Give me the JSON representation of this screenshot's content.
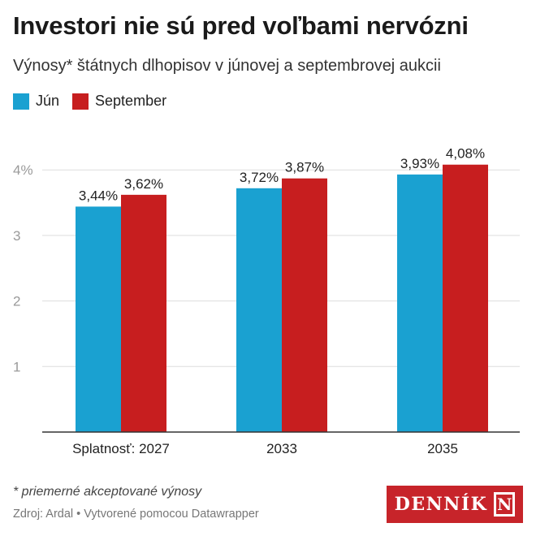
{
  "header": {
    "title": "Investori nie sú pred voľbami nervózni",
    "subtitle": "Výnosy* štátnych dlhopisov v júnovej a septembrovej aukcii"
  },
  "legend": [
    {
      "label": "Jún",
      "color": "#1aa1d1"
    },
    {
      "label": "September",
      "color": "#c71e1f"
    }
  ],
  "chart_data": {
    "type": "bar",
    "categories": [
      "Splatnosť: 2027",
      "2033",
      "2035"
    ],
    "series": [
      {
        "name": "Jún",
        "values": [
          3.44,
          3.72,
          3.93
        ],
        "labels": [
          "3,44%",
          "3,72%",
          "3,93%"
        ],
        "color": "#1aa1d1"
      },
      {
        "name": "September",
        "values": [
          3.62,
          3.87,
          4.08
        ],
        "labels": [
          "3,62%",
          "3,87%",
          "4,08%"
        ],
        "color": "#c71e1f"
      }
    ],
    "yticks": [
      1,
      2,
      3,
      4
    ],
    "ytick_labels": [
      "1",
      "2",
      "3",
      "4%"
    ],
    "ylim": [
      0,
      4.5
    ],
    "grid": true,
    "legend_position": "top-left"
  },
  "footer": {
    "note": "* priemerné akceptované výnosy",
    "source": "Zdroj: Ardal • Vytvorené pomocou Datawrapper",
    "logo_text": "DENNÍK",
    "logo_mark": "N"
  }
}
